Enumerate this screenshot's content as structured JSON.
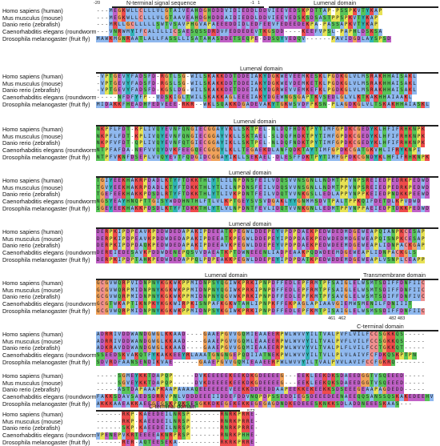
{
  "species": [
    "Homo sapiens (human)",
    "Mus musculus (mouse)",
    "Danio rerio (zebrafish)",
    "Caenorhabditis elegans (roundworm)",
    "Drosophila melanogaster (fruit fly)"
  ],
  "colors": {
    "hydrophobic": "#8fb8ee",
    "positive": "#ee4b4b",
    "negative": "#c060c6",
    "polar": "#58c458",
    "cysteine": "#ef9090",
    "glycine": "#f0a25a",
    "proline": "#e8e254",
    "aromatic": "#2fb4b4",
    "gap": "#ffffff"
  },
  "blocks": [
    {
      "rows": [
        "---MEGKWLLCLLLVLGTAIVEAHDGHDDDVIDIEDDLDDVIEEVEDSKPDTTAP-PSSPKVTYKAP",
        "---MEGKWLLCLLLVLGTAAVEAHDGHDDDAIDIEDDLDDVIEEVEDSKSDSASTPPSPKVTYKAP",
        "---MRLLGCLLLLLSWTVSAVPHGVAPAEEEDDIDLEDFEEVFEDEEDEKPA-PASSAPKVTYKAP",
        "---VNRWMYIFCALILLICSAESQSSDRDVFEDDEDEVTKGSDD----KEEFVPSL-PAPHLDSKSA",
        "MAWKMGNRAATLALLFASSLLISATAHASDDETSEQPE-DDSQYVEDQV------PAVIDGDLAYSPSD"
      ],
      "top": 10,
      "label_y": 2,
      "labels": [
        {
          "text": "N-terminal signal sequence",
          "x": 158,
          "w": 118
        },
        {
          "text": "Lumenal domain",
          "x": 392,
          "w": 90
        }
      ],
      "bars": [
        {
          "x": 140,
          "w": 190
        },
        {
          "x": 336,
          "w": 212
        }
      ],
      "nums": [
        {
          "text": "-20",
          "x": 117
        },
        {
          "text": "-1",
          "x": 313
        },
        {
          "text": "1",
          "x": 322
        }
      ]
    },
    {
      "rows": [
        "-VPTGEVYFADSFD-RGTLSG-WILSKAKKDDTDDEIAKYDGKWEVEEMKESKLPGDKGLVLMSRAKHHAISAKL",
        "-VPTGEVYFADSFD-RGSLSG-WILSKAKKDDTDDEIAKYDGKWEVDEMKETKLPGDKGLVLMSRAKHHAISAKL",
        "-VPTGEVYFADSFD-KGSLDG-WILSKAKKDETDDEIAKYDGRWEVVEMKEFKLPGDKGLVLMSRAKHHAISAKL",
        "-----NFDFYFP--VDSKIGLTWILSKAKKAGLEEEIAKYDGEWNGSGAPTKVSEDLGLVLKTKAKHHAIAAKL",
        "MIDAKKFHEADHFEDVEEE-RKR--WKLSQAKKDGADEVAKYTGKWSVDFPKSN-PLAGDKGLVLTSKAKHHAIASKL"
      ],
      "top": 92,
      "label_y": 84,
      "labels": [
        {
          "text": "Lumenal domain",
          "x": 300,
          "w": 80
        }
      ],
      "bars": [
        {
          "x": 120,
          "w": 428
        }
      ],
      "nums": []
    },
    {
      "rows": [
        "NKPFLFDT-KPLIVQYEVNFQNGIECGGAYVKLLSKTPEL-NLDQFHDKTPYTIMFGPDKCGEDYKLHFIFRHKNPK",
        "NKPFLFDT-KPLIVQYEVNFQNGIECGGAYVKLLSKTAEL-SLDQFHDKTPYTIMFGPDKCGEDYKLHFIFRHKNPK",
        "NKPFVFDT-QPLIVQYEVNFQTGIECGGAYIKLLSKTPEL-NLDQFNDKTPYTIMFGPDKCGEDYKLHFIFRHKNPK",
        "NTPFAFDA-NEFVVQYDVKFEEGQECGGGYLKLLTEGAEKDLANFQDKTAYTIMFGPDKCGATGKVHLIFRYKNPI",
        "NTPFVKNFDSEPLVVQYEVTFQDGIDCGGAYIKLLSEKAEL-DLESFFDKTPYTIMFGPDKCGNDYKLHFIFRHKNPK"
      ],
      "top": 168,
      "label_y": 160,
      "labels": [
        {
          "text": "Lumenal domain",
          "x": 292,
          "w": 80
        }
      ],
      "bars": [
        {
          "x": 120,
          "w": 428
        }
      ],
      "nums": []
    },
    {
      "rows": [
        "TGIYEEKHAKRPDADLKTYFTDKKTHLYTLILNPDNSFEILVDQSVVNSGNLLNDMTPPVNPSREIEDPEDRKPEDWD",
        "TGVYEEKHAKRPDADLKTYFTDKKTHLYTLILNPDNSFEILVDQSVVNSGNLLNDMTPPVNPSREIEDPEDRKPEDWD",
        "TGEFEEKHAKKPDSDLRTYFTDKKTHLYTLIVKPDNTFEILVDQTVVNKGSLLEDLAPPVNPPKEIEDPNDKKPEEWD",
        "NGSYEAYHNQPTTGISYWDDHNTHLFTLVLKPTGEYSVSVDGAKLYYGNMMSDVTPALTPPKQIFDETDLKPVDWD",
        "SGEYEEKHAKKPDSDLKTYFTDKKTHLYTLVLNPDNTFEVLIDQTVVNKGNLLEDMTPPVNPPAEIEDPTDKKPEDWD"
      ],
      "top": 236,
      "label_y": 228,
      "labels": [
        {
          "text": "Lumenal domain",
          "x": 286,
          "w": 80
        }
      ],
      "bars": [
        {
          "x": 120,
          "w": 428
        }
      ],
      "nums": []
    },
    {
      "rows": [
        "DERPKIPDPEAVKPDDWDEDAPAKIPDEEATKPEGWLDDEPEYVPDPDAEKPEDWDEDMDGEWEAPQIANPKCESAP",
        "DERPKIPDPEAVKPDDWDEDAPAKIPDEEATKPEGWLDDEPEYIPDPDAEKPEDWDEDMDGEWEAPQISNPKCESAP",
        "DERPKIPDPDAQKPEDWDEDAPAKIPDEEAVKPEGWLDDEPEYVPDPDAEKPEDWDEEMDGEWEAPLIDNPACKGAP",
        "DEREIEDESAVKPDDWDENEPQSVVDAEATKPTDWNEEENLIADPEAAKPQDWDEEMDGEWEAPLIDNPACKGLS",
        "DERPKIPDPTAHKPEDWDEDAPPQLPDPEAKKPEGWLDDEPEYIPDPDATKPEDWDDEMDGEWEAPLVSNPLCEAPP"
      ],
      "top": 302,
      "label_y": 294,
      "labels": [
        {
          "text": "Lumenal domain",
          "x": 286,
          "w": 80
        }
      ],
      "bars": [
        {
          "x": 120,
          "w": 428
        }
      ],
      "nums": []
    },
    {
      "rows": [
        "GCGVWQRPVIDNPNYKGKWKPPMIDNPSYQGIWKPRKIPNPDFFEDLEPFRMTPFSAIGLELWSMTSDIFFDNFIIC",
        "GCGVWQRPMIDNPNYKGKWKPPMIDNPNYQGIWKPRKIPNPDFFEDLEPFRMTPFSAIGLELWSMTSDIFFDNFIIC",
        "GCGVWQRPMIDNPNYKGKWKPPMIDNPNYQGVWKPRKIPNPDFFEDLEPFKMTPFSAVGLELWSMTSDIFFDNFIVC",
        "GCGTWKAPTIKNPKYKGKWIRPKISNPAFKGKWTAHLIPNPKFFEKPAGLAPIAAVGIEMWSMENILFDNIIIT",
        "GCGVWQRPMIDNPNYKGKWKPPMIDNPSYKGIWKPRKIPNPDFFEDLEPFKMTPISAIGLELWSMSSDIFFDNFIIC"
      ],
      "top": 368,
      "label_y": 360,
      "labels": [
        {
          "text": "Lumenal domain",
          "x": 256,
          "w": 72
        },
        {
          "text": "Transmembrane domain",
          "x": 454,
          "w": 94
        }
      ],
      "bars": [
        {
          "x": 120,
          "w": 330
        },
        {
          "x": 452,
          "w": 96
        }
      ],
      "nums": [
        {
          "text": "461",
          "x": 410
        },
        {
          "text": "462",
          "x": 423
        },
        {
          "text": "482 483",
          "x": 486
        }
      ]
    },
    {
      "rows": [
        "ADRRIVDDWANDGWGLKKAAD----GAAEPGVVGQMIEAAEERPWLWVVYILTVALPVFLVILFCCSGKKQS-----",
        "ADRRIVDDWANDGWGLKKAAD----GAAEPGVVGQMLEAAEERPWLWVVYILTVALPVFLVILFCCSGKKQS-----",
        "ADKRAVDDWANDGWGLKKAAD----GAAEPGVVGQMIEAAEERPWLWVVYVLTVALPLFLVILFCCTGKKQT-----",
        "SSEEDSKVAKQTFYKAKKEEYRLAAATGNGNGEPQDIIATNEKPWLWVVYILTVLLPLVLAIVFCFDKQSKPTPN",
        "SDVRDFAANSENDIKVAE------GAAEPGVVGQMIEAAEERPWLWVVYILTVALPVVLAVIFCCFGKRQ-------"
      ],
      "top": 434,
      "label_y": 426,
      "labels": [
        {
          "text": "C-terminal domain",
          "x": 446,
          "w": 82
        }
      ],
      "bars": [
        {
          "x": 438,
          "w": 110
        }
      ],
      "nums": []
    },
    {
      "rows": [
        "-----SGMEYKKTDAPQP-----DVKEEEEEKEEKDKGDEEEEG---EEKLEEKDKSDAEEDGGTVSQEEED-----",
        "-----SGVEYKKTDAPQP-----DVKDEEEEKEEKDKGDEEEEG---EEKLEEKQKSDAEEDGGTVSQEEED-----",
        "-----ASTDAPAAAPKAAPAAAAQEEEEEEEVEEKKDDEEDDAAPEEKKEKEEKKSDSEEEGEAAPAGDEDD-----",
        "FAKKSDAVSAEDSDRRVPNLVDDDEEEIIDDEFDDVNQPDPSSEDDIEGSDEEEDEENAEEQQSANSSQSKAKEDEEHV",
        "AKKKAAEAKKAEEGEGSKPQKSESGKKDKEGEKEKKEGEGAGDNDKEDEEESKNKKSDLADDNEEESKAAS---"
      ],
      "top": 482,
      "label_y": 474,
      "labels": [],
      "bars": [],
      "nums": [
        {
          "text": "572",
          "x": 309
        }
      ]
    },
    {
      "rows": [
        "------RKP-KAEEDEILNRSP-------RNRKPRRE-",
        "------RKP-KAEEDEILNRSP-------RNRKPRRE-",
        "------SKP-KAEEDEILNRSP-------RNRKPRRE-",
        "VPENEPVKRTEEEEAKNRPRSP-------RNRKPHHE-",
        "------RER-AQTEESEKA----------RKRKPRRE-"
      ],
      "top": 560,
      "label_y": 552,
      "labels": [
        {
          "text": "C-terminal domain",
          "x": 186,
          "w": 82
        }
      ],
      "bars": [
        {
          "x": 120,
          "w": 180
        }
      ],
      "nums": []
    }
  ]
}
